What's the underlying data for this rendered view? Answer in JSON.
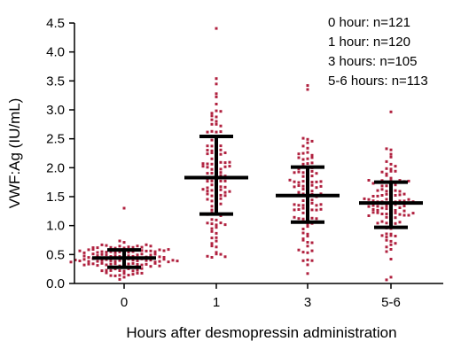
{
  "chart_data": {
    "type": "scatter",
    "subtype": "dot-plot with mean and standard deviation bars",
    "xlabel": "Hours after desmopressin administration",
    "ylabel": "VWF:Ag (IU/mL)",
    "ylim": [
      0,
      4.5
    ],
    "yticks": [
      "0.0",
      "0.5",
      "1.0",
      "1.5",
      "2.0",
      "2.5",
      "3.0",
      "3.5",
      "4.0",
      "4.5"
    ],
    "categories": [
      "0",
      "1",
      "3",
      "5-6"
    ],
    "legend_lines": [
      "0 hour: n=121",
      "1 hour: n=120",
      "3 hours: n=105",
      "5-6 hours: n=113"
    ],
    "point_color": "#b0213f",
    "bar_color": "#000000",
    "grid": false,
    "groups": [
      {
        "category": "0",
        "n": 121,
        "mean": 0.44,
        "sd_low": 0.28,
        "sd_high": 0.58,
        "min": 0.08,
        "max": 1.24
      },
      {
        "category": "1",
        "n": 120,
        "mean": 1.83,
        "sd_low": 1.2,
        "sd_high": 2.54,
        "min": 0.45,
        "max": 4.38
      },
      {
        "category": "3",
        "n": 105,
        "mean": 1.52,
        "sd_low": 1.06,
        "sd_high": 2.01,
        "min": 0.15,
        "max": 3.4
      },
      {
        "category": "5-6",
        "n": 113,
        "mean": 1.39,
        "sd_low": 0.97,
        "sd_high": 1.75,
        "min": 0.06,
        "max": 2.98
      }
    ]
  }
}
